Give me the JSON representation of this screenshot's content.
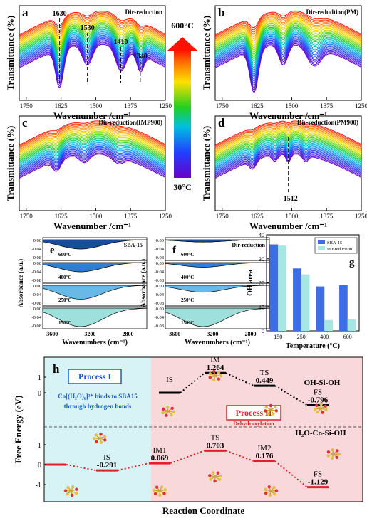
{
  "chart_data": [
    {
      "panel": "a",
      "type": "line",
      "title": "Dir-reduction",
      "xlabel": "Wavenumber /cm⁻¹",
      "ylabel": "Transmittance (%)",
      "xlim": [
        1775,
        1250
      ],
      "xticks": [
        1750,
        1625,
        1500,
        1375,
        1250
      ],
      "series_count": 30,
      "temperature_range": [
        "30°C",
        "600°C"
      ],
      "marked_peaks": [
        1630,
        1530,
        1410,
        1340
      ]
    },
    {
      "panel": "b",
      "type": "line",
      "title": "Dir-redudtion(PM)",
      "xlabel": "Wavenumber /cm⁻¹",
      "ylabel": "Transmittance (%)",
      "xlim": [
        1775,
        1250
      ],
      "xticks": [
        1750,
        1625,
        1500,
        1375,
        1250
      ],
      "series_count": 30
    },
    {
      "panel": "c",
      "type": "line",
      "title": "Dir-reduction(IMP900)",
      "xlabel": "Wavenumber /cm⁻¹",
      "ylabel": "Transmittance (%)",
      "xlim": [
        1775,
        1250
      ],
      "xticks": [
        1750,
        1625,
        1500,
        1375,
        1250
      ],
      "series_count": 30
    },
    {
      "panel": "d",
      "type": "line",
      "title": "Dir-reduction(PM900)",
      "xlabel": "Wavenumber /cm⁻¹",
      "ylabel": "Transmittance (%)",
      "xlim": [
        1775,
        1250
      ],
      "xticks": [
        1750,
        1625,
        1500,
        1375,
        1250
      ],
      "series_count": 30,
      "marked_peaks": [
        1512
      ]
    },
    {
      "panel": "e",
      "type": "area",
      "title": "SBA-15",
      "xlabel": "Wavenumbers (cm⁻¹)",
      "ylabel": "Absorbance (a.u.)",
      "xlim": [
        3700,
        2600
      ],
      "xticks": [
        3600,
        3200,
        2800
      ],
      "ylim": [
        -0.08,
        0.0
      ],
      "yticks": [
        "0.00",
        "-0.04",
        "-0.08"
      ],
      "series": [
        {
          "name": "600°C",
          "min": -0.04
        },
        {
          "name": "400°C",
          "min": -0.04
        },
        {
          "name": "250°C",
          "min": -0.06
        },
        {
          "name": "150°C",
          "min": -0.08
        }
      ]
    },
    {
      "panel": "f",
      "type": "area",
      "title": "Dir-reduction",
      "xlabel": "Wavenumbers (cm⁻¹)",
      "ylabel": "Absorbance (a.u.)",
      "xlim": [
        3700,
        2600
      ],
      "xticks": [
        3600,
        3200,
        2800
      ],
      "ylim": [
        -0.08,
        0.0
      ],
      "yticks": [
        "0.00",
        "-0.04",
        "-0.08"
      ],
      "series": [
        {
          "name": "600°C",
          "min": -0.01
        },
        {
          "name": "400°C",
          "min": -0.02
        },
        {
          "name": "250°C",
          "min": -0.03
        },
        {
          "name": "150°C",
          "min": -0.08
        }
      ]
    },
    {
      "panel": "g",
      "type": "bar",
      "xlabel": "Temperature (°C)",
      "ylabel": "OH area",
      "categories": [
        "150",
        "250",
        "400",
        "600"
      ],
      "ylim": [
        0,
        40
      ],
      "yticks": [
        0,
        10,
        20,
        30,
        40
      ],
      "legend": "top-right",
      "series": [
        {
          "name": "SBA-15",
          "color": "#3e6ee6",
          "values": [
            36,
            26,
            18.5,
            19
          ]
        },
        {
          "name": "Dir-reduction",
          "color": "#a8e6e4",
          "values": [
            35.5,
            23.5,
            4.5,
            4.8
          ]
        }
      ]
    },
    {
      "panel": "h",
      "type": "line",
      "xlabel": "Reaction Coordinate",
      "ylabel": "Free Energy (eV)",
      "upper": {
        "name": "OH-Si-OH",
        "states": [
          {
            "label": "IS",
            "value": 0
          },
          {
            "label": "IM",
            "value": 1.264
          },
          {
            "label": "TS",
            "value": 0.449
          },
          {
            "label": "FS",
            "value": -0.796
          }
        ],
        "yticks": [
          "1",
          "0"
        ]
      },
      "lower": {
        "name": "H₂O-Co-Si-OH",
        "states": [
          {
            "label": "",
            "value": 0
          },
          {
            "label": "IS",
            "value": -0.291
          },
          {
            "label": "IM1",
            "value": 0.069
          },
          {
            "label": "TS",
            "value": 0.703
          },
          {
            "label": "IM2",
            "value": 0.176
          },
          {
            "label": "FS",
            "value": -1.129
          }
        ],
        "yticks": [
          "1",
          "0",
          "-1"
        ]
      },
      "process1": {
        "title": "Process I",
        "desc1": "Co[(H₂O)₆]²⁺ binds to SBA15",
        "desc2": "through hydrogen bonds"
      },
      "process2": {
        "title": "Process II",
        "desc": "Dehydroxylation"
      }
    }
  ],
  "labels": {
    "a": "a",
    "b": "b",
    "c": "c",
    "d": "d",
    "e": "e",
    "f": "f",
    "g": "g",
    "h": "h",
    "temp_high": "600°C",
    "temp_low": "30°C"
  }
}
